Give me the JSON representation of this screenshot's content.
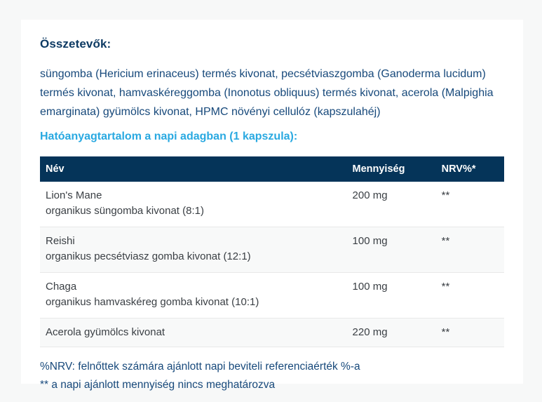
{
  "page": {
    "background_color": "#f7f8f8",
    "card_background_color": "#ffffff"
  },
  "ingredients": {
    "heading": "Összetevők:",
    "text": "süngomba (Hericium erinaceus) termés kivonat, pecsétviaszgomba (Ganoderma lucidum) termés kivonat, hamvaskéreggomba (Inonotus obliquus) termés kivonat, acerola (Malpighia emarginata) gyümölcs kivonat, HPMC növényi cellulóz (kapszulahéj)",
    "heading_color": "#0d3a63",
    "text_color": "#17497b"
  },
  "actives": {
    "heading": "Hatóanyagtartalom a napi adagban (1 kapszula):",
    "heading_color": "#29a9e1",
    "table": {
      "header_background_color": "#053459",
      "header_text_color": "#ffffff",
      "columns": [
        "Név",
        "Mennyiség",
        "NRV%*"
      ],
      "rows": [
        {
          "name": "Lion's Mane",
          "detail": "organikus süngomba kivonat (8:1)",
          "amount": "200 mg",
          "nrv": "**"
        },
        {
          "name": "Reishi",
          "detail": "organikus pecsétviasz gomba kivonat (12:1)",
          "amount": "100 mg",
          "nrv": "**"
        },
        {
          "name": "Chaga",
          "detail": "organikus hamvaskéreg gomba kivonat (10:1)",
          "amount": "100 mg",
          "nrv": "**"
        },
        {
          "name": "Acerola gyümölcs kivonat",
          "detail": "",
          "amount": "220 mg",
          "nrv": "**"
        }
      ]
    }
  },
  "footnotes": {
    "nrv_note": "%NRV: felnőttek számára ajánlott napi beviteli referenciaérték %-a",
    "asterisk_note": "** a napi ajánlott mennyiség nincs meghatározva",
    "text_color": "#17497b"
  }
}
